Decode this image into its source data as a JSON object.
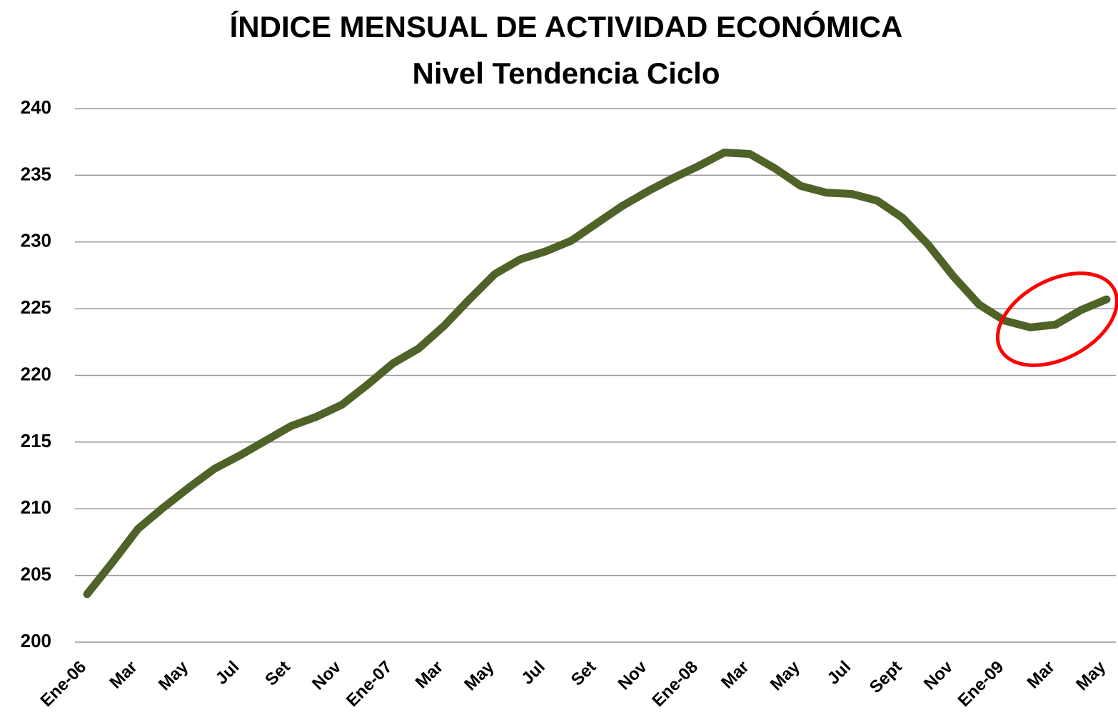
{
  "chart_data": {
    "type": "line",
    "title": "ÍNDICE MENSUAL DE ACTIVIDAD ECONÓMICA",
    "subtitle": "Nivel Tendencia Ciclo",
    "categories": [
      "Ene-06",
      null,
      "Mar",
      null,
      "May",
      null,
      "Jul",
      null,
      "Set",
      null,
      "Nov",
      null,
      "Ene-07",
      null,
      "Mar",
      null,
      "May",
      null,
      "Jul",
      null,
      "Set",
      null,
      "Nov",
      null,
      "Ene-08",
      null,
      "Mar",
      null,
      "May",
      null,
      "Jul",
      null,
      "Sept",
      null,
      "Nov",
      null,
      "Ene-09",
      null,
      "Mar",
      null,
      "May"
    ],
    "values": [
      203.6,
      206.0,
      208.5,
      210.1,
      211.6,
      213.0,
      214.0,
      215.1,
      216.2,
      216.9,
      217.8,
      219.3,
      220.9,
      222.0,
      223.7,
      225.7,
      227.6,
      228.7,
      229.3,
      230.1,
      231.4,
      232.7,
      233.8,
      234.8,
      235.7,
      236.7,
      236.6,
      235.5,
      234.2,
      233.7,
      233.6,
      233.1,
      231.8,
      229.8,
      227.4,
      225.3,
      224.1,
      223.6,
      223.8,
      224.9,
      225.7
    ],
    "color": "#4f6228",
    "ylim": [
      200,
      240
    ],
    "yticks": [
      200,
      205,
      210,
      215,
      220,
      225,
      230,
      235,
      240
    ],
    "grid": true
  }
}
